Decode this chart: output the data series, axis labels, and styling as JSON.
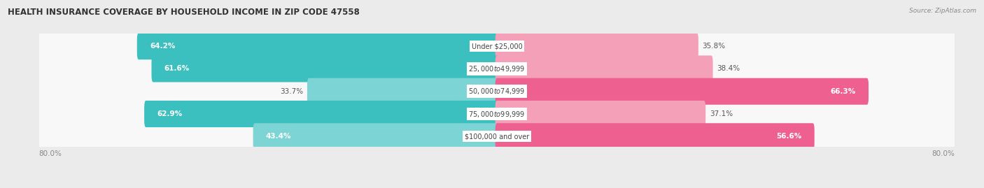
{
  "title": "HEALTH INSURANCE COVERAGE BY HOUSEHOLD INCOME IN ZIP CODE 47558",
  "source": "Source: ZipAtlas.com",
  "categories": [
    "Under $25,000",
    "$25,000 to $49,999",
    "$50,000 to $74,999",
    "$75,000 to $99,999",
    "$100,000 and over"
  ],
  "with_coverage": [
    64.2,
    61.6,
    33.7,
    62.9,
    43.4
  ],
  "without_coverage": [
    35.8,
    38.4,
    66.3,
    37.1,
    56.6
  ],
  "coverage_color": "#3bbfbf",
  "coverage_color_light": "#7dd4d4",
  "no_coverage_color": "#f4a0b8",
  "no_coverage_color_dark": "#ee6090",
  "background_color": "#ebebeb",
  "bar_background": "#f8f8f8",
  "row_sep_color": "#d8d8d8",
  "axis_min": -80.0,
  "axis_max": 80.0,
  "title_fontsize": 8.5,
  "label_fontsize": 7.5,
  "cat_fontsize": 7.0,
  "tick_fontsize": 7.5,
  "source_fontsize": 6.5,
  "legend_fontsize": 7.5
}
